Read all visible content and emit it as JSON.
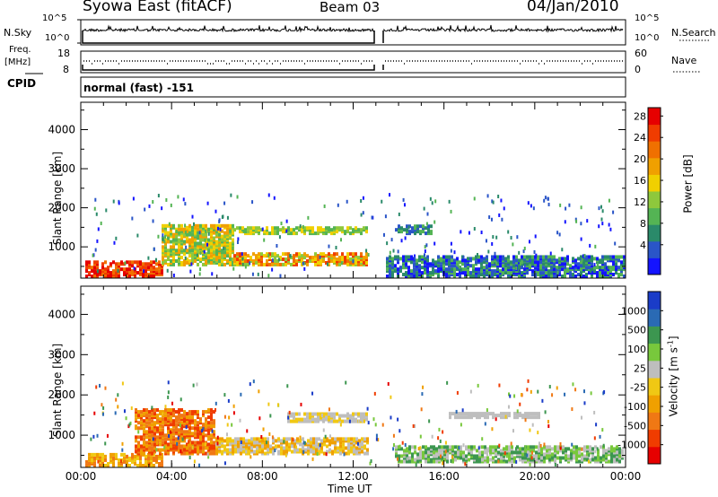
{
  "header": {
    "station": "Syowa East (fitACF)",
    "beam": "Beam 03",
    "date": "04/Jan/2010"
  },
  "top_panels": {
    "nsky_label": "N.Sky",
    "nsearch_label": "N.Search",
    "nsky_ticks": [
      "10^5",
      "10^0"
    ],
    "nsky_right_ticks": [
      "10^5",
      "10^0"
    ],
    "freq_label_line1": "Freq.",
    "freq_label_line2": "[MHz]",
    "freq_ticks": [
      "18",
      "8"
    ],
    "nave_ticks": [
      "60",
      "0"
    ],
    "nave_label": "Nave",
    "cpid_label": "CPID",
    "cpid_value": "normal (fast) -151"
  },
  "chart_data": [
    {
      "type": "heatmap",
      "title": "",
      "xlabel": "",
      "ylabel": "Slant Range [km]",
      "x_range": [
        "00:00",
        "00:00"
      ],
      "y_range_km": [
        200,
        4700
      ],
      "y_ticks": [
        1000,
        2000,
        3000,
        4000
      ],
      "colorbar": {
        "label": "Power [dB]",
        "ticks": [
          4,
          8,
          12,
          16,
          20,
          24,
          28
        ],
        "colors": [
          "#1414ff",
          "#2a55c8",
          "#2a8a6a",
          "#54b454",
          "#8ec83c",
          "#f0d000",
          "#f0a000",
          "#f07000",
          "#f03c00",
          "#e60000"
        ]
      }
    },
    {
      "type": "heatmap",
      "title": "",
      "xlabel": "Time UT",
      "ylabel": "Slant Range [km]",
      "x_ticks": [
        "00:00",
        "04:00",
        "08:00",
        "12:00",
        "16:00",
        "20:00",
        "00:00"
      ],
      "y_range_km": [
        200,
        4700
      ],
      "y_ticks": [
        1000,
        2000,
        3000,
        4000
      ],
      "colorbar": {
        "label": "Velocity [m s^-1]",
        "label_main": "Velocity",
        "label_unit": "[m s",
        "label_sup": "-1",
        "label_end": "]",
        "ticks": [
          1000,
          500,
          100,
          25,
          -25,
          -100,
          -500,
          -1000
        ],
        "colors": [
          "#1a3cc8",
          "#2a6ab4",
          "#3c9650",
          "#78c83c",
          "#bebebe",
          "#f0c814",
          "#f0a000",
          "#f07814",
          "#f03c00",
          "#e60000"
        ]
      }
    }
  ]
}
